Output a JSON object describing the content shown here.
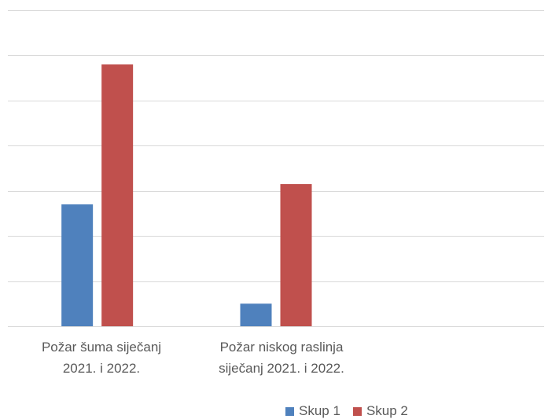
{
  "chart_data": {
    "type": "bar",
    "categories": [
      [
        "Požar šuma siječanj",
        "2021. i 2022."
      ],
      [
        "Požar niskog raslinja",
        "siječanj 2021. i 2022."
      ],
      [
        "",
        ""
      ]
    ],
    "series": [
      {
        "name": "Skup 1",
        "color": "#4f81bd",
        "values": [
          27,
          5,
          null
        ]
      },
      {
        "name": "Skup 2",
        "color": "#c0504d",
        "values": [
          58,
          31.5,
          null
        ]
      }
    ],
    "ylim": [
      0,
      70
    ],
    "grid": true,
    "legend": "bottom"
  }
}
